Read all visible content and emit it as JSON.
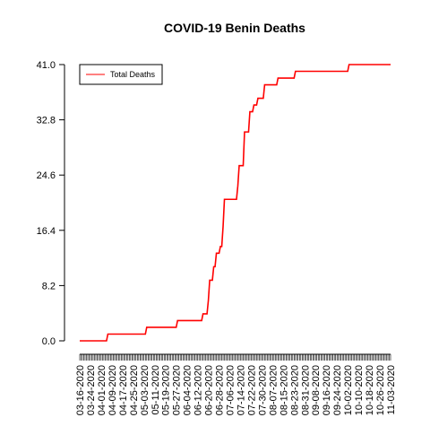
{
  "chart_data": {
    "type": "line",
    "title": "COVID-19 Benin Deaths",
    "xlabel": "",
    "ylabel": "",
    "ylim": [
      0,
      41
    ],
    "y_ticks": [
      "0.0",
      "8.2",
      "16.4",
      "24.6",
      "32.8",
      "41.0"
    ],
    "x_tick_labels": [
      "03-16-2020",
      "03-24-2020",
      "04-01-2020",
      "04-09-2020",
      "04-17-2020",
      "04-25-2020",
      "05-03-2020",
      "05-11-2020",
      "05-19-2020",
      "05-27-2020",
      "06-04-2020",
      "06-12-2020",
      "06-20-2020",
      "06-28-2020",
      "07-06-2020",
      "07-14-2020",
      "07-22-2020",
      "07-30-2020",
      "08-07-2020",
      "08-15-2020",
      "08-23-2020",
      "08-31-2020",
      "09-08-2020",
      "09-16-2020",
      "09-24-2020",
      "10-02-2020",
      "10-10-2020",
      "10-18-2020",
      "10-26-2020",
      "11-03-2020"
    ],
    "x_range": [
      "03-16-2020",
      "11-03-2020"
    ],
    "grid": false,
    "legend_position": "top-left",
    "series": [
      {
        "name": "Total Deaths",
        "color": "#ff0000",
        "points": [
          [
            "03-16-2020",
            0
          ],
          [
            "04-05-2020",
            0
          ],
          [
            "04-06-2020",
            1
          ],
          [
            "05-04-2020",
            1
          ],
          [
            "05-05-2020",
            2
          ],
          [
            "05-27-2020",
            2
          ],
          [
            "05-28-2020",
            3
          ],
          [
            "06-15-2020",
            3
          ],
          [
            "06-16-2020",
            4
          ],
          [
            "06-19-2020",
            4
          ],
          [
            "06-20-2020",
            6
          ],
          [
            "06-21-2020",
            9
          ],
          [
            "06-23-2020",
            9
          ],
          [
            "06-24-2020",
            11
          ],
          [
            "06-25-2020",
            11
          ],
          [
            "06-26-2020",
            13
          ],
          [
            "06-28-2020",
            13
          ],
          [
            "06-29-2020",
            14
          ],
          [
            "06-30-2020",
            14
          ],
          [
            "07-01-2020",
            17
          ],
          [
            "07-02-2020",
            21
          ],
          [
            "07-11-2020",
            21
          ],
          [
            "07-12-2020",
            23
          ],
          [
            "07-13-2020",
            26
          ],
          [
            "07-16-2020",
            26
          ],
          [
            "07-17-2020",
            31
          ],
          [
            "07-20-2020",
            31
          ],
          [
            "07-21-2020",
            34
          ],
          [
            "07-23-2020",
            34
          ],
          [
            "07-24-2020",
            35
          ],
          [
            "07-26-2020",
            35
          ],
          [
            "07-27-2020",
            36
          ],
          [
            "07-31-2020",
            36
          ],
          [
            "08-01-2020",
            38
          ],
          [
            "08-10-2020",
            38
          ],
          [
            "08-11-2020",
            39
          ],
          [
            "08-23-2020",
            39
          ],
          [
            "08-24-2020",
            40
          ],
          [
            "10-02-2020",
            40
          ],
          [
            "10-03-2020",
            41
          ],
          [
            "11-03-2020",
            41
          ]
        ]
      }
    ]
  }
}
